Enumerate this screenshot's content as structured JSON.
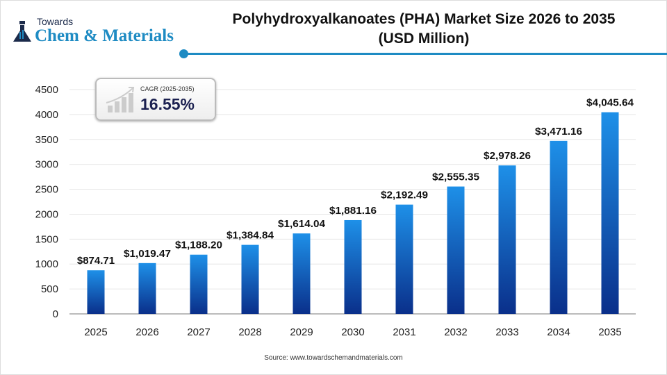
{
  "logo": {
    "line1": "Towards",
    "line2": "Chem & Materials"
  },
  "title": "Polyhydroxyalkanoates (PHA) Market Size 2026 to 2035",
  "subtitle": "(USD Million)",
  "cagr": {
    "label": "CAGR (2025-2035)",
    "value": "16.55%"
  },
  "source": "Source: www.towardschemandmaterials.com",
  "colors": {
    "bar_top": "#1e90e8",
    "bar_bottom": "#0a2f8a",
    "accent": "#1e8bc3"
  },
  "chart_data": {
    "type": "bar",
    "categories": [
      "2025",
      "2026",
      "2027",
      "2028",
      "2029",
      "2030",
      "2031",
      "2032",
      "2033",
      "2034",
      "2035"
    ],
    "values": [
      874.71,
      1019.47,
      1188.2,
      1384.84,
      1614.04,
      1881.16,
      2192.49,
      2555.35,
      2978.26,
      3471.16,
      4045.64
    ],
    "data_labels": [
      "$874.71",
      "$1,019.47",
      "$1,188.20",
      "$1,384.84",
      "$1,614.04",
      "$1,881.16",
      "$2,192.49",
      "$2,555.35",
      "$2,978.26",
      "$3,471.16",
      "$4,045.64"
    ],
    "yticks": [
      0,
      500,
      1000,
      1500,
      2000,
      2500,
      3000,
      3500,
      4000,
      4500
    ],
    "ylim": [
      0,
      4500
    ],
    "grid": true,
    "xlabel": "",
    "ylabel": ""
  }
}
